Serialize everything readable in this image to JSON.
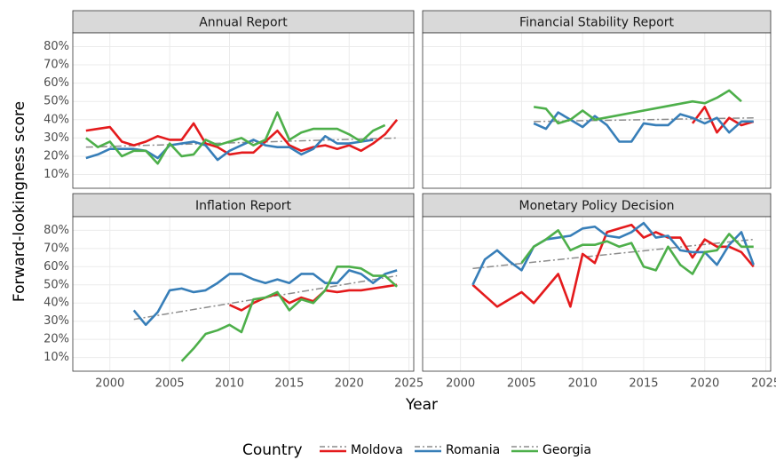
{
  "chart_data": {
    "type": "line",
    "y_label": "Forward-lookingness score",
    "x_label": "Year",
    "legend_title": "Country",
    "xlim": [
      1996.9,
      2025.4
    ],
    "xticks": [
      2000,
      2005,
      2010,
      2015,
      2020,
      2025
    ],
    "ylim": [
      2.5,
      87.5
    ],
    "yticks": [
      {
        "value": 10,
        "label": "10%"
      },
      {
        "value": 20,
        "label": "20%"
      },
      {
        "value": 30,
        "label": "30%"
      },
      {
        "value": 40,
        "label": "40%"
      },
      {
        "value": 50,
        "label": "50%"
      },
      {
        "value": 60,
        "label": "60%"
      },
      {
        "value": 70,
        "label": "70%"
      },
      {
        "value": 80,
        "label": "80%"
      }
    ],
    "grid": true,
    "trend_color": "#8c8c8c",
    "panels": [
      {
        "title": "Annual Report",
        "series": [
          {
            "name": "Moldova",
            "color": "#e41a1c",
            "x": [
              1998,
              1999,
              2000,
              2001,
              2002,
              2003,
              2004,
              2005,
              2006,
              2007,
              2008,
              2009,
              2010,
              2011,
              2012,
              2013,
              2014,
              2015,
              2016,
              2017,
              2018,
              2019,
              2020,
              2021,
              2022,
              2023,
              2024
            ],
            "values": [
              34,
              35,
              36,
              28,
              26,
              28,
              31,
              29,
              29,
              38,
              27,
              25,
              21,
              22,
              22,
              28,
              34,
              26,
              23,
              25,
              26,
              24,
              26,
              23,
              27,
              32,
              40
            ]
          },
          {
            "name": "Romania",
            "color": "#377eb8",
            "x": [
              1998,
              1999,
              2000,
              2001,
              2002,
              2003,
              2004,
              2005,
              2006,
              2007,
              2008,
              2009,
              2010,
              2011,
              2012,
              2013,
              2014,
              2015,
              2016,
              2017,
              2018,
              2019,
              2020,
              2021,
              2022
            ],
            "values": [
              19,
              21,
              24,
              24,
              24,
              23,
              19,
              26,
              27,
              28,
              26,
              18,
              23,
              26,
              29,
              26,
              25,
              25,
              21,
              24,
              31,
              27,
              27,
              28,
              29
            ]
          },
          {
            "name": "Georgia",
            "color": "#4daf4a",
            "x": [
              1998,
              1999,
              2000,
              2001,
              2002,
              2003,
              2004,
              2005,
              2006,
              2007,
              2008,
              2009,
              2010,
              2011,
              2012,
              2013,
              2014,
              2015,
              2016,
              2017,
              2018,
              2019,
              2020,
              2021,
              2022,
              2023
            ],
            "values": [
              30,
              25,
              28,
              20,
              23,
              23,
              16,
              27,
              20,
              21,
              29,
              26,
              28,
              30,
              26,
              29,
              44,
              29,
              33,
              35,
              35,
              35,
              32,
              28,
              34,
              37
            ]
          }
        ],
        "trend": {
          "x": [
            1998,
            2024
          ],
          "values": [
            25,
            30
          ]
        }
      },
      {
        "title": "Financial Stability Report",
        "series": [
          {
            "name": "Moldova",
            "color": "#e41a1c",
            "x": [
              2019,
              2020,
              2021,
              2022,
              2023,
              2024
            ],
            "values": [
              38,
              47,
              33,
              41,
              37,
              39
            ]
          },
          {
            "name": "Romania",
            "color": "#377eb8",
            "x": [
              2006,
              2007,
              2008,
              2009,
              2010,
              2011,
              2012,
              2013,
              2014,
              2015,
              2016,
              2017,
              2018,
              2019,
              2020,
              2021,
              2022,
              2023,
              2024
            ],
            "values": [
              38,
              35,
              44,
              40,
              36,
              42,
              37,
              28,
              28,
              38,
              37,
              37,
              43,
              41,
              38,
              41,
              33,
              39,
              39
            ]
          },
          {
            "name": "Georgia",
            "color": "#4daf4a",
            "x": [
              2006,
              2007,
              2008,
              2009,
              2010,
              2011,
              2019,
              2020,
              2021,
              2022,
              2023
            ],
            "values": [
              47,
              46,
              38,
              40,
              45,
              40,
              50,
              49,
              52,
              56,
              50
            ]
          }
        ],
        "trend": {
          "x": [
            2006,
            2024
          ],
          "values": [
            39,
            41
          ]
        }
      },
      {
        "title": "Inflation Report",
        "series": [
          {
            "name": "Moldova",
            "color": "#e41a1c",
            "x": [
              2010,
              2011,
              2012,
              2013,
              2014,
              2015,
              2016,
              2017,
              2018,
              2019,
              2020,
              2021,
              2022,
              2023,
              2024
            ],
            "values": [
              39,
              36,
              40,
              43,
              45,
              40,
              43,
              41,
              47,
              46,
              47,
              47,
              48,
              49,
              50
            ]
          },
          {
            "name": "Romania",
            "color": "#377eb8",
            "x": [
              2002,
              2003,
              2004,
              2005,
              2006,
              2007,
              2008,
              2009,
              2010,
              2011,
              2012,
              2013,
              2014,
              2015,
              2016,
              2017,
              2018,
              2019,
              2020,
              2021,
              2022,
              2023,
              2024
            ],
            "values": [
              36,
              28,
              35,
              47,
              48,
              46,
              47,
              51,
              56,
              56,
              53,
              51,
              53,
              51,
              56,
              56,
              51,
              51,
              58,
              56,
              51,
              56,
              58
            ]
          },
          {
            "name": "Georgia",
            "color": "#4daf4a",
            "x": [
              2006,
              2007,
              2008,
              2009,
              2010,
              2011,
              2012,
              2013,
              2014,
              2015,
              2016,
              2017,
              2018,
              2019,
              2020,
              2021,
              2022,
              2023,
              2024
            ],
            "values": [
              8,
              15,
              23,
              25,
              28,
              24,
              42,
              43,
              46,
              36,
              42,
              40,
              47,
              60,
              60,
              59,
              55,
              55,
              49
            ]
          }
        ],
        "trend": {
          "x": [
            2002,
            2024
          ],
          "values": [
            31,
            55
          ]
        }
      },
      {
        "title": "Monetary Policy Decision",
        "series": [
          {
            "name": "Moldova",
            "color": "#e41a1c",
            "x": [
              2001,
              2002,
              2003,
              2004,
              2005,
              2006,
              2007,
              2008,
              2009,
              2010,
              2011,
              2012,
              2013,
              2014,
              2015,
              2016,
              2017,
              2018,
              2019,
              2020,
              2021,
              2022,
              2023,
              2024
            ],
            "values": [
              50,
              44,
              38,
              42,
              46,
              40,
              48,
              56,
              38,
              67,
              62,
              79,
              81,
              83,
              76,
              79,
              76,
              76,
              65,
              75,
              71,
              71,
              68,
              60
            ]
          },
          {
            "name": "Romania",
            "color": "#377eb8",
            "x": [
              2001,
              2002,
              2003,
              2004,
              2005,
              2006,
              2007,
              2008,
              2009,
              2010,
              2011,
              2012,
              2013,
              2014,
              2015,
              2016,
              2017,
              2018,
              2019,
              2020,
              2021,
              2022,
              2023,
              2024
            ],
            "values": [
              50,
              64,
              69,
              63,
              58,
              71,
              75,
              76,
              77,
              81,
              82,
              77,
              76,
              79,
              84,
              76,
              77,
              69,
              68,
              68,
              61,
              72,
              79,
              61
            ]
          },
          {
            "name": "Georgia",
            "color": "#4daf4a",
            "x": [
              2005,
              2006,
              2007,
              2008,
              2009,
              2010,
              2011,
              2012,
              2013,
              2014,
              2015,
              2016,
              2017,
              2018,
              2019,
              2020,
              2021,
              2022,
              2023,
              2024
            ],
            "values": [
              62,
              71,
              75,
              80,
              69,
              72,
              72,
              74,
              71,
              73,
              60,
              58,
              71,
              61,
              56,
              68,
              69,
              78,
              71,
              71
            ]
          }
        ],
        "trend": {
          "x": [
            2001,
            2024
          ],
          "values": [
            59,
            75
          ]
        }
      }
    ]
  }
}
